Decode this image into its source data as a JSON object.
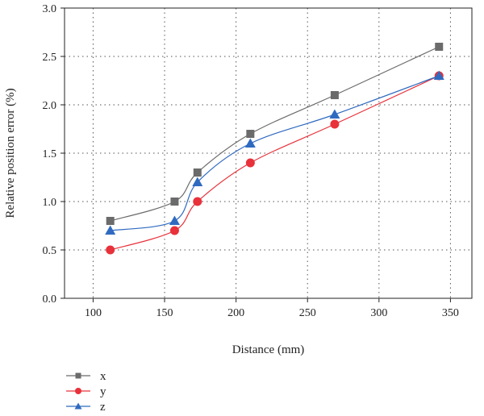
{
  "chart_data": {
    "type": "line",
    "title": "",
    "xlabel": "Distance (mm)",
    "ylabel": "Relative position error (%)",
    "xlim": [
      80,
      365
    ],
    "ylim": [
      0.0,
      3.0
    ],
    "xticks": [
      100,
      150,
      200,
      250,
      300,
      350
    ],
    "yticks": [
      0.0,
      0.5,
      1.0,
      1.5,
      2.0,
      2.5,
      3.0
    ],
    "xtick_labels": [
      "100",
      "150",
      "200",
      "250",
      "300",
      "350"
    ],
    "ytick_labels": [
      "0.0",
      "0.5",
      "1.0",
      "1.5",
      "2.0",
      "2.5",
      "3.0"
    ],
    "grid": true,
    "legend_position": "bottom-left",
    "x": [
      112,
      157,
      173,
      210,
      269,
      342
    ],
    "series": [
      {
        "name": "x",
        "marker": "square",
        "color": "#6b6b6b",
        "values": [
          0.8,
          1.0,
          1.3,
          1.7,
          2.1,
          2.6
        ]
      },
      {
        "name": "y",
        "marker": "circle",
        "color": "#e8313a",
        "values": [
          0.5,
          0.7,
          1.0,
          1.4,
          1.8,
          2.3
        ]
      },
      {
        "name": "z",
        "marker": "triangle",
        "color": "#2f6ac0",
        "values": [
          0.7,
          0.8,
          1.2,
          1.6,
          1.9,
          2.3
        ]
      }
    ]
  }
}
